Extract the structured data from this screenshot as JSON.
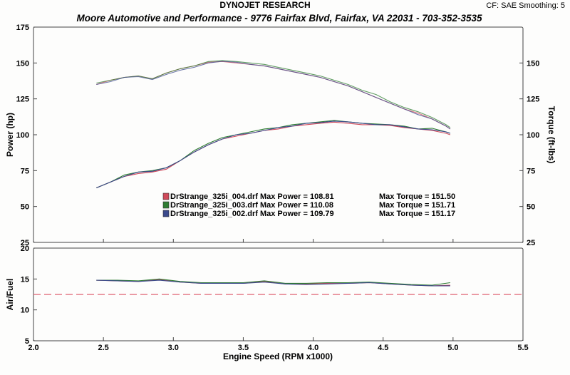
{
  "header": {
    "title": "DYNOJET RESEARCH",
    "subtitle": "Moore Automotive and Performance - 9776 Fairfax Blvd, Fairfax, VA 22031 - 703-352-3535",
    "correction": "CF: SAE  Smoothing: 5"
  },
  "colors": {
    "run004": "#d04a5a",
    "run003": "#2e7d32",
    "run002": "#3b4a8c",
    "target_line": "#e06070"
  },
  "chart_data": [
    {
      "type": "line",
      "title": "",
      "xlabel": "Engine Speed (RPM x1000)",
      "ylabel": "Power (hp)",
      "y2label": "Torque (ft-lbs)",
      "xlim": [
        2.0,
        5.5
      ],
      "ylim": [
        25,
        175
      ],
      "y2lim": [
        25,
        175
      ],
      "x_ticks": [
        "2.0",
        "2.5",
        "3.0",
        "3.5",
        "4.0",
        "4.5",
        "5.0",
        "5.5"
      ],
      "y_ticks": [
        "25",
        "50",
        "75",
        "100",
        "125",
        "150",
        "175"
      ],
      "y2_ticks": [
        "25",
        "50",
        "75",
        "100",
        "125",
        "150"
      ],
      "grid": false,
      "legend": [
        {
          "swatch": "run004",
          "text": "DrStrange_325i_004.drf Max Power = 108.81",
          "torque": "Max Torque = 151.50"
        },
        {
          "swatch": "run003",
          "text": "DrStrange_325i_003.drf Max Power = 110.08",
          "torque": "Max Torque = 151.71"
        },
        {
          "swatch": "run002",
          "text": "DrStrange_325i_002.drf Max Power = 109.79",
          "torque": "Max Torque = 151.17"
        }
      ],
      "series": [
        {
          "measure": "power",
          "run": "run004",
          "x": [
            2.45,
            2.55,
            2.65,
            2.75,
            2.85,
            2.95,
            3.05,
            3.15,
            3.25,
            3.35,
            3.45,
            3.55,
            3.65,
            3.75,
            3.85,
            3.95,
            4.05,
            4.15,
            4.25,
            4.35,
            4.45,
            4.55,
            4.65,
            4.75,
            4.85,
            4.95,
            4.98
          ],
          "y": [
            63,
            67,
            71,
            73,
            74,
            76,
            82,
            88,
            93,
            97,
            99,
            101,
            103,
            104,
            106,
            107,
            108,
            108.8,
            108,
            107,
            107,
            106.5,
            105,
            104,
            103,
            101,
            100
          ]
        },
        {
          "measure": "power",
          "run": "run003",
          "x": [
            2.45,
            2.55,
            2.65,
            2.75,
            2.85,
            2.95,
            3.05,
            3.15,
            3.25,
            3.35,
            3.45,
            3.55,
            3.65,
            3.75,
            3.85,
            3.95,
            4.05,
            4.15,
            4.25,
            4.35,
            4.45,
            4.55,
            4.65,
            4.75,
            4.85,
            4.95,
            4.98
          ],
          "y": [
            63,
            67,
            72,
            74,
            75,
            77,
            82,
            89,
            94,
            98,
            100,
            102,
            104,
            105,
            107,
            108,
            109,
            110,
            109,
            108,
            107.5,
            107,
            106,
            104,
            104.5,
            102,
            101
          ]
        },
        {
          "measure": "power",
          "run": "run002",
          "x": [
            2.45,
            2.55,
            2.65,
            2.75,
            2.85,
            2.95,
            3.05,
            3.15,
            3.25,
            3.35,
            3.45,
            3.55,
            3.65,
            3.75,
            3.85,
            3.95,
            4.05,
            4.15,
            4.25,
            4.35,
            4.45,
            4.55,
            4.65,
            4.75,
            4.85,
            4.95,
            4.98
          ],
          "y": [
            63,
            67,
            71,
            74,
            74.5,
            77,
            82,
            88,
            93,
            97,
            100,
            101,
            103,
            105,
            106,
            108,
            108.5,
            109.5,
            109,
            108,
            107,
            107,
            105.5,
            104,
            103.5,
            102,
            101
          ]
        },
        {
          "measure": "torque",
          "run": "run004",
          "x": [
            2.45,
            2.55,
            2.65,
            2.75,
            2.85,
            2.95,
            3.05,
            3.15,
            3.25,
            3.35,
            3.45,
            3.55,
            3.65,
            3.75,
            3.85,
            3.95,
            4.05,
            4.15,
            4.25,
            4.35,
            4.45,
            4.55,
            4.65,
            4.75,
            4.85,
            4.95,
            4.98
          ],
          "y": [
            135,
            138,
            140,
            141,
            139,
            143,
            146,
            148,
            150.5,
            151,
            150,
            149,
            148,
            146,
            144,
            142,
            140,
            137,
            134,
            130,
            126,
            122,
            118,
            115,
            111,
            106,
            104
          ]
        },
        {
          "measure": "torque",
          "run": "run003",
          "x": [
            2.45,
            2.55,
            2.65,
            2.75,
            2.85,
            2.95,
            3.05,
            3.15,
            3.25,
            3.35,
            3.45,
            3.55,
            3.65,
            3.75,
            3.85,
            3.95,
            4.05,
            4.15,
            4.25,
            4.35,
            4.45,
            4.55,
            4.65,
            4.75,
            4.85,
            4.95,
            4.98
          ],
          "y": [
            136,
            138,
            140,
            141,
            139,
            143,
            146,
            148,
            151,
            151.7,
            151,
            150,
            149,
            147,
            145,
            143,
            141,
            138,
            135,
            131,
            128,
            123,
            119,
            116,
            112,
            107,
            105
          ]
        },
        {
          "measure": "torque",
          "run": "run002",
          "x": [
            2.45,
            2.55,
            2.65,
            2.75,
            2.85,
            2.95,
            3.05,
            3.15,
            3.25,
            3.35,
            3.45,
            3.55,
            3.65,
            3.75,
            3.85,
            3.95,
            4.05,
            4.15,
            4.25,
            4.35,
            4.45,
            4.55,
            4.65,
            4.75,
            4.85,
            4.95,
            4.98
          ],
          "y": [
            135,
            137,
            140,
            140.5,
            138.5,
            142,
            145,
            147,
            150,
            151.2,
            150.5,
            149,
            148,
            146,
            144,
            142,
            140,
            137,
            134,
            130,
            126,
            122,
            118,
            114,
            111,
            106,
            104
          ]
        }
      ]
    },
    {
      "type": "line",
      "title": "",
      "xlabel": "Engine Speed (RPM x1000)",
      "ylabel": "Air/Fuel",
      "xlim": [
        2.0,
        5.5
      ],
      "ylim": [
        5,
        20
      ],
      "y_ticks": [
        "5",
        "10",
        "15",
        "20"
      ],
      "grid": false,
      "reference_line": {
        "y": 12.5,
        "style": "dashed",
        "color": "target_line"
      },
      "series": [
        {
          "run": "run004",
          "x": [
            2.45,
            2.6,
            2.75,
            2.9,
            3.05,
            3.2,
            3.35,
            3.5,
            3.65,
            3.8,
            3.95,
            4.1,
            4.25,
            4.4,
            4.55,
            4.7,
            4.85,
            4.98
          ],
          "y": [
            14.8,
            14.7,
            14.6,
            14.9,
            14.5,
            14.3,
            14.4,
            14.3,
            14.6,
            14.2,
            14.2,
            14.3,
            14.3,
            14.4,
            14.2,
            14.0,
            13.9,
            14.0
          ]
        },
        {
          "run": "run003",
          "x": [
            2.45,
            2.6,
            2.75,
            2.9,
            3.05,
            3.2,
            3.35,
            3.5,
            3.65,
            3.8,
            3.95,
            4.1,
            4.25,
            4.4,
            4.55,
            4.7,
            4.85,
            4.98
          ],
          "y": [
            14.8,
            14.8,
            14.7,
            15.0,
            14.6,
            14.4,
            14.4,
            14.4,
            14.7,
            14.3,
            14.3,
            14.4,
            14.4,
            14.5,
            14.3,
            14.1,
            14.0,
            14.4
          ]
        },
        {
          "run": "run002",
          "x": [
            2.45,
            2.6,
            2.75,
            2.9,
            3.05,
            3.2,
            3.35,
            3.5,
            3.65,
            3.8,
            3.95,
            4.1,
            4.25,
            4.4,
            4.55,
            4.7,
            4.85,
            4.98
          ],
          "y": [
            14.8,
            14.7,
            14.6,
            14.8,
            14.5,
            14.3,
            14.3,
            14.3,
            14.5,
            14.2,
            14.1,
            14.2,
            14.3,
            14.4,
            14.2,
            14.0,
            13.9,
            13.9
          ]
        }
      ]
    }
  ]
}
